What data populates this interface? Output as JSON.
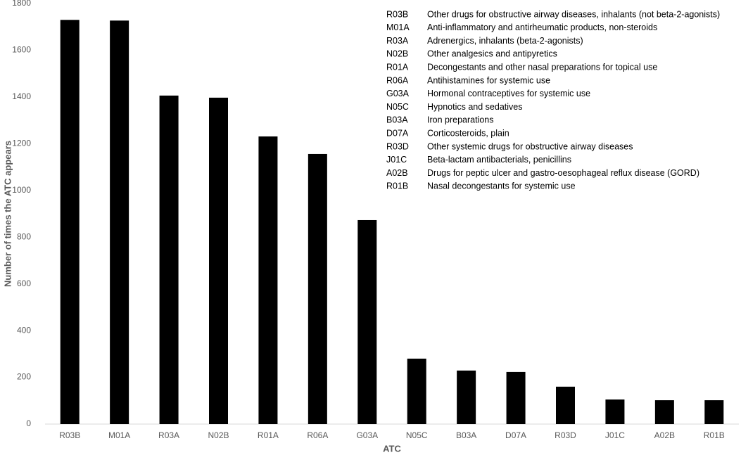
{
  "chart_data": {
    "type": "bar",
    "x_label": "ATC",
    "y_label": "Number of times the ATC appears",
    "categories": [
      "R03B",
      "M01A",
      "R03A",
      "N02B",
      "R01A",
      "R06A",
      "G03A",
      "N05C",
      "B03A",
      "D07A",
      "R03D",
      "J01C",
      "A02B",
      "R01B"
    ],
    "values": [
      1730,
      1727,
      1406,
      1397,
      1231,
      1156,
      873,
      280,
      229,
      223,
      160,
      105,
      102,
      102
    ],
    "color": "#000000",
    "ylim": [
      0,
      1800
    ],
    "yticks": [
      0,
      200,
      400,
      600,
      800,
      1000,
      1200,
      1400,
      1600,
      1800
    ],
    "grid": false,
    "annotations": [
      {
        "code": "R03B",
        "description": "Other drugs for obstructive airway diseases, inhalants (not beta-2-agonists)"
      },
      {
        "code": "M01A",
        "description": "Anti-inflammatory and antirheumatic products, non-steroids"
      },
      {
        "code": "R03A",
        "description": "Adrenergics, inhalants (beta-2-agonists)"
      },
      {
        "code": "N02B",
        "description": "Other analgesics and antipyretics"
      },
      {
        "code": "R01A",
        "description": "Decongestants and other nasal preparations for topical use"
      },
      {
        "code": "R06A",
        "description": "Antihistamines for systemic use"
      },
      {
        "code": "G03A",
        "description": "Hormonal contraceptives for systemic use"
      },
      {
        "code": "N05C",
        "description": "Hypnotics and sedatives"
      },
      {
        "code": "B03A",
        "description": "Iron preparations"
      },
      {
        "code": "D07A",
        "description": "Corticosteroids, plain"
      },
      {
        "code": "R03D",
        "description": "Other systemic drugs for obstructive airway diseases"
      },
      {
        "code": "J01C",
        "description": "Beta-lactam antibacterials, penicillins"
      },
      {
        "code": "A02B",
        "description": "Drugs for peptic ulcer and gastro-oesophageal reflux disease (GORD)"
      },
      {
        "code": "R01B",
        "description": "Nasal decongestants for systemic use"
      }
    ]
  }
}
